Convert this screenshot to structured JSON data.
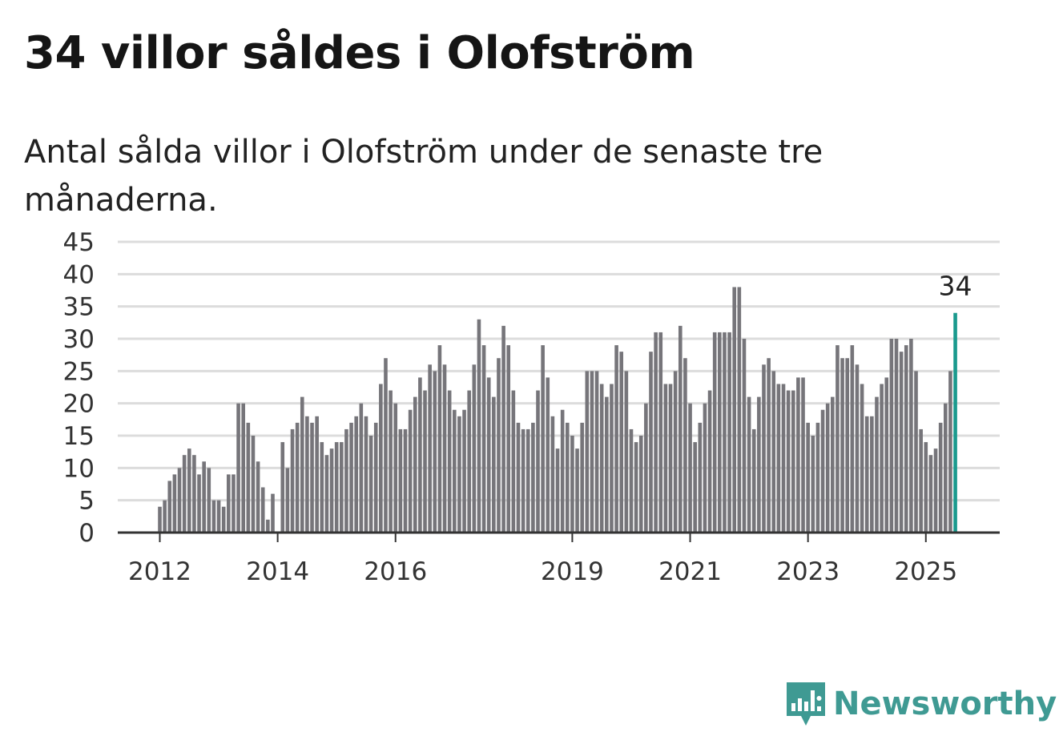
{
  "title": "34 villor såldes i Olofström",
  "subtitle": "Antal sålda villor i Olofström under de senaste tre månaderna.",
  "brand": {
    "name": "Newsworthy",
    "icon": "newsworthy-logo-icon",
    "color": "#3f9a93"
  },
  "colors": {
    "bar": "#76757a",
    "highlight": "#1a9a8e",
    "grid": "#dcdcdc",
    "axis": "#333333"
  },
  "chart_data": {
    "type": "bar",
    "xlabel": "",
    "ylabel": "",
    "ylim": [
      0,
      45
    ],
    "yticks": [
      0,
      5,
      10,
      15,
      20,
      25,
      30,
      35,
      40,
      45
    ],
    "xticks": [
      {
        "label": "2012",
        "index": 0
      },
      {
        "label": "2014",
        "index": 24
      },
      {
        "label": "2016",
        "index": 48
      },
      {
        "label": "2019",
        "index": 84
      },
      {
        "label": "2021",
        "index": 108
      },
      {
        "label": "2023",
        "index": 132
      },
      {
        "label": "2025",
        "index": 156
      }
    ],
    "start": "2012-01",
    "values": [
      4,
      5,
      8,
      9,
      10,
      12,
      13,
      12,
      9,
      11,
      10,
      5,
      5,
      4,
      9,
      9,
      20,
      20,
      17,
      15,
      11,
      7,
      2,
      6,
      0,
      14,
      10,
      16,
      17,
      21,
      18,
      17,
      18,
      14,
      12,
      13,
      14,
      14,
      16,
      17,
      18,
      20,
      18,
      15,
      17,
      23,
      27,
      22,
      20,
      16,
      16,
      19,
      21,
      24,
      22,
      26,
      25,
      29,
      26,
      22,
      19,
      18,
      19,
      22,
      26,
      33,
      29,
      24,
      21,
      27,
      32,
      29,
      22,
      17,
      16,
      16,
      17,
      22,
      29,
      24,
      18,
      13,
      19,
      17,
      15,
      13,
      17,
      25,
      25,
      25,
      23,
      21,
      23,
      29,
      28,
      25,
      16,
      14,
      15,
      20,
      28,
      31,
      31,
      23,
      23,
      25,
      32,
      27,
      20,
      14,
      17,
      20,
      22,
      31,
      31,
      31,
      31,
      38,
      38,
      30,
      21,
      16,
      21,
      26,
      27,
      25,
      23,
      23,
      22,
      22,
      24,
      24,
      17,
      15,
      17,
      19,
      20,
      21,
      29,
      27,
      27,
      29,
      26,
      23,
      18,
      18,
      21,
      23,
      24,
      30,
      30,
      28,
      29,
      30,
      25,
      16,
      14,
      12,
      13,
      17,
      20,
      25,
      34
    ],
    "highlight": {
      "index": 162,
      "value": 34,
      "label": "34"
    }
  }
}
